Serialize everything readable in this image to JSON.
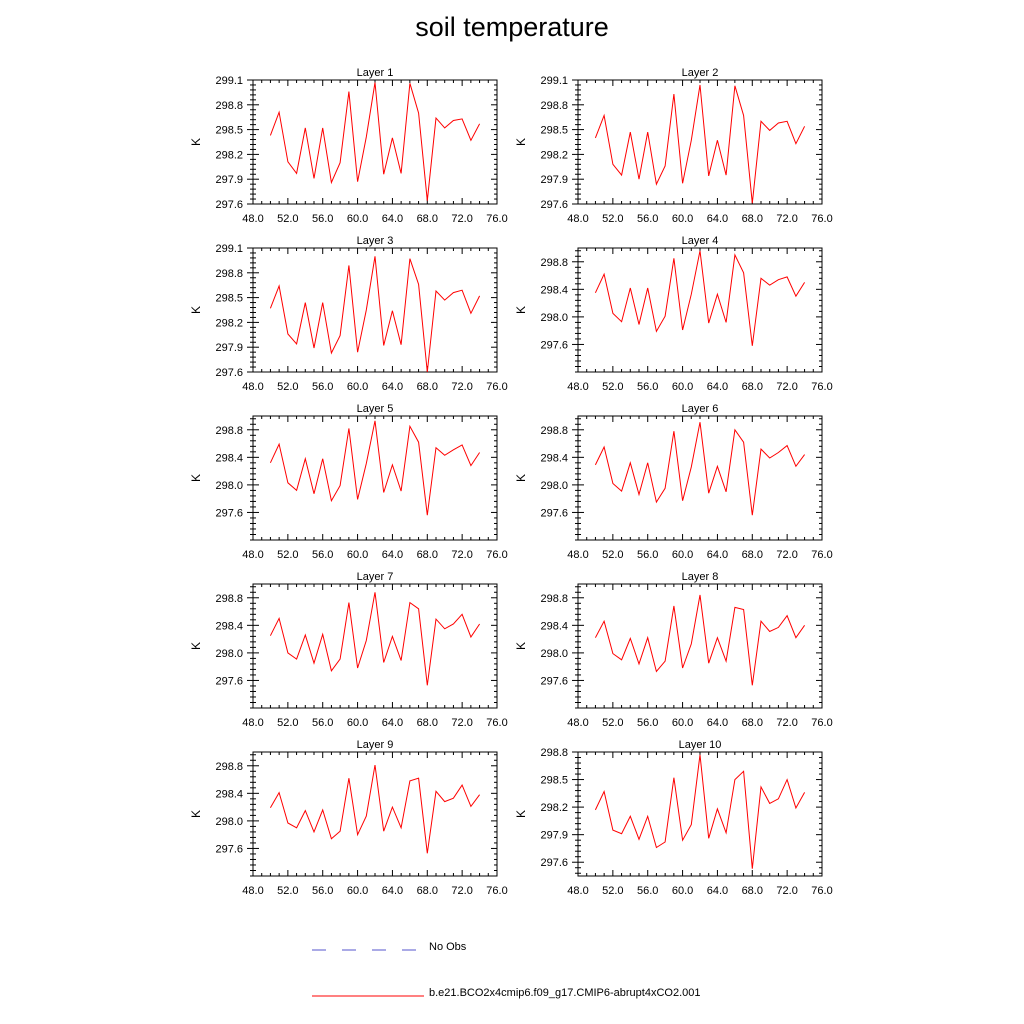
{
  "title": "soil temperature",
  "legend": {
    "items": [
      {
        "label": "No Obs",
        "color": "#5555cc",
        "style": "dashed"
      },
      {
        "label": "b.e21.BCO2x4cmip6.f09_g17.CMIP6-abrupt4xCO2.001",
        "color": "#ff0000",
        "style": "solid"
      }
    ]
  },
  "chart_data": [
    {
      "type": "line",
      "title": "Layer 1",
      "ylabel": "K",
      "xlim": [
        48,
        76
      ],
      "ylim": [
        297.6,
        299.1
      ],
      "xticks": [
        "48.0",
        "52.0",
        "56.0",
        "60.0",
        "64.0",
        "68.0",
        "72.0",
        "76.0"
      ],
      "yticks": [
        "297.6",
        "297.9",
        "298.2",
        "298.5",
        "298.8",
        "299.1"
      ],
      "series": [
        {
          "name": "b.e21.BCO2x4cmip6.f09_g17.CMIP6-abrupt4xCO2.001",
          "x": [
            50,
            51,
            52,
            53,
            54,
            55,
            56,
            57,
            58,
            59,
            60,
            61,
            62,
            63,
            64,
            65,
            66,
            67,
            68,
            69,
            70,
            71,
            72,
            73,
            74
          ],
          "y": [
            298.43,
            298.71,
            298.11,
            297.97,
            298.52,
            297.91,
            298.52,
            297.86,
            298.1,
            298.96,
            297.87,
            298.41,
            299.07,
            297.96,
            298.4,
            297.97,
            299.06,
            298.7,
            297.64,
            298.64,
            298.52,
            298.61,
            298.63,
            298.37,
            298.57
          ]
        }
      ]
    },
    {
      "type": "line",
      "title": "Layer 2",
      "ylabel": "K",
      "xlim": [
        48,
        76
      ],
      "ylim": [
        297.6,
        299.1
      ],
      "xticks": [
        "48.0",
        "52.0",
        "56.0",
        "60.0",
        "64.0",
        "68.0",
        "72.0",
        "76.0"
      ],
      "yticks": [
        "297.6",
        "297.9",
        "298.2",
        "298.5",
        "298.8",
        "299.1"
      ],
      "series": [
        {
          "name": "b.e21.BCO2x4cmip6.f09_g17.CMIP6-abrupt4xCO2.001",
          "x": [
            50,
            51,
            52,
            53,
            54,
            55,
            56,
            57,
            58,
            59,
            60,
            61,
            62,
            63,
            64,
            65,
            66,
            67,
            68,
            69,
            70,
            71,
            72,
            73,
            74
          ],
          "y": [
            298.4,
            298.67,
            298.08,
            297.95,
            298.47,
            297.9,
            298.47,
            297.84,
            298.06,
            298.93,
            297.85,
            298.37,
            299.04,
            297.94,
            298.37,
            297.95,
            299.03,
            298.67,
            297.61,
            298.6,
            298.49,
            298.58,
            298.6,
            298.33,
            298.54
          ]
        }
      ]
    },
    {
      "type": "line",
      "title": "Layer 3",
      "ylabel": "K",
      "xlim": [
        48,
        76
      ],
      "ylim": [
        297.6,
        299.1
      ],
      "xticks": [
        "48.0",
        "52.0",
        "56.0",
        "60.0",
        "64.0",
        "68.0",
        "72.0",
        "76.0"
      ],
      "yticks": [
        "297.6",
        "297.9",
        "298.2",
        "298.5",
        "298.8",
        "299.1"
      ],
      "series": [
        {
          "name": "b.e21.BCO2x4cmip6.f09_g17.CMIP6-abrupt4xCO2.001",
          "x": [
            50,
            51,
            52,
            53,
            54,
            55,
            56,
            57,
            58,
            59,
            60,
            61,
            62,
            63,
            64,
            65,
            66,
            67,
            68,
            69,
            70,
            71,
            72,
            73,
            74
          ],
          "y": [
            298.37,
            298.64,
            298.06,
            297.94,
            298.44,
            297.89,
            298.44,
            297.83,
            298.04,
            298.89,
            297.84,
            298.35,
            299.0,
            297.92,
            298.34,
            297.93,
            298.97,
            298.66,
            297.6,
            298.58,
            298.47,
            298.56,
            298.59,
            298.31,
            298.52
          ]
        }
      ]
    },
    {
      "type": "line",
      "title": "Layer 4",
      "ylabel": "K",
      "xlim": [
        48,
        76
      ],
      "ylim": [
        297.2,
        299.0
      ],
      "xticks": [
        "48.0",
        "52.0",
        "56.0",
        "60.0",
        "64.0",
        "68.0",
        "72.0",
        "76.0"
      ],
      "yticks": [
        "297.6",
        "298.0",
        "298.4",
        "298.8"
      ],
      "series": [
        {
          "name": "b.e21.BCO2x4cmip6.f09_g17.CMIP6-abrupt4xCO2.001",
          "x": [
            50,
            51,
            52,
            53,
            54,
            55,
            56,
            57,
            58,
            59,
            60,
            61,
            62,
            63,
            64,
            65,
            66,
            67,
            68,
            69,
            70,
            71,
            72,
            73,
            74
          ],
          "y": [
            298.35,
            298.62,
            298.05,
            297.93,
            298.42,
            297.89,
            298.42,
            297.79,
            298.01,
            298.85,
            297.81,
            298.33,
            298.96,
            297.91,
            298.33,
            297.92,
            298.9,
            298.64,
            297.58,
            298.56,
            298.46,
            298.54,
            298.58,
            298.3,
            298.5
          ]
        }
      ]
    },
    {
      "type": "line",
      "title": "Layer 5",
      "ylabel": "K",
      "xlim": [
        48,
        76
      ],
      "ylim": [
        297.2,
        299.0
      ],
      "xticks": [
        "48.0",
        "52.0",
        "56.0",
        "60.0",
        "64.0",
        "68.0",
        "72.0",
        "76.0"
      ],
      "yticks": [
        "297.6",
        "298.0",
        "298.4",
        "298.8"
      ],
      "series": [
        {
          "name": "b.e21.BCO2x4cmip6.f09_g17.CMIP6-abrupt4xCO2.001",
          "x": [
            50,
            51,
            52,
            53,
            54,
            55,
            56,
            57,
            58,
            59,
            60,
            61,
            62,
            63,
            64,
            65,
            66,
            67,
            68,
            69,
            70,
            71,
            72,
            73,
            74
          ],
          "y": [
            298.32,
            298.59,
            298.03,
            297.92,
            298.38,
            297.87,
            298.38,
            297.77,
            297.99,
            298.82,
            297.79,
            298.31,
            298.93,
            297.89,
            298.29,
            297.91,
            298.85,
            298.62,
            297.56,
            298.54,
            298.43,
            298.51,
            298.58,
            298.28,
            298.47
          ]
        }
      ]
    },
    {
      "type": "line",
      "title": "Layer 6",
      "ylabel": "K",
      "xlim": [
        48,
        76
      ],
      "ylim": [
        297.2,
        299.0
      ],
      "xticks": [
        "48.0",
        "52.0",
        "56.0",
        "60.0",
        "64.0",
        "68.0",
        "72.0",
        "76.0"
      ],
      "yticks": [
        "297.6",
        "298.0",
        "298.4",
        "298.8"
      ],
      "series": [
        {
          "name": "b.e21.BCO2x4cmip6.f09_g17.CMIP6-abrupt4xCO2.001",
          "x": [
            50,
            51,
            52,
            53,
            54,
            55,
            56,
            57,
            58,
            59,
            60,
            61,
            62,
            63,
            64,
            65,
            66,
            67,
            68,
            69,
            70,
            71,
            72,
            73,
            74
          ],
          "y": [
            298.29,
            298.55,
            298.02,
            297.91,
            298.32,
            297.86,
            298.32,
            297.75,
            297.95,
            298.78,
            297.77,
            298.26,
            298.91,
            297.88,
            298.27,
            297.9,
            298.8,
            298.62,
            297.56,
            298.52,
            298.39,
            298.47,
            298.57,
            298.27,
            298.44
          ]
        }
      ]
    },
    {
      "type": "line",
      "title": "Layer 7",
      "ylabel": "K",
      "xlim": [
        48,
        76
      ],
      "ylim": [
        297.2,
        299.0
      ],
      "xticks": [
        "48.0",
        "52.0",
        "56.0",
        "60.0",
        "64.0",
        "68.0",
        "72.0",
        "76.0"
      ],
      "yticks": [
        "297.6",
        "298.0",
        "298.4",
        "298.8"
      ],
      "series": [
        {
          "name": "b.e21.BCO2x4cmip6.f09_g17.CMIP6-abrupt4xCO2.001",
          "x": [
            50,
            51,
            52,
            53,
            54,
            55,
            56,
            57,
            58,
            59,
            60,
            61,
            62,
            63,
            64,
            65,
            66,
            67,
            68,
            69,
            70,
            71,
            72,
            73,
            74
          ],
          "y": [
            298.25,
            298.5,
            298.0,
            297.91,
            298.26,
            297.85,
            298.27,
            297.74,
            297.91,
            298.73,
            297.78,
            298.18,
            298.88,
            297.86,
            298.24,
            297.89,
            298.73,
            298.64,
            297.53,
            298.49,
            298.35,
            298.42,
            298.56,
            298.23,
            298.42
          ]
        }
      ]
    },
    {
      "type": "line",
      "title": "Layer 8",
      "ylabel": "K",
      "xlim": [
        48,
        76
      ],
      "ylim": [
        297.2,
        299.0
      ],
      "xticks": [
        "48.0",
        "52.0",
        "56.0",
        "60.0",
        "64.0",
        "68.0",
        "72.0",
        "76.0"
      ],
      "yticks": [
        "297.6",
        "298.0",
        "298.4",
        "298.8"
      ],
      "series": [
        {
          "name": "b.e21.BCO2x4cmip6.f09_g17.CMIP6-abrupt4xCO2.001",
          "x": [
            50,
            51,
            52,
            53,
            54,
            55,
            56,
            57,
            58,
            59,
            60,
            61,
            62,
            63,
            64,
            65,
            66,
            67,
            68,
            69,
            70,
            71,
            72,
            73,
            74
          ],
          "y": [
            298.22,
            298.46,
            297.99,
            297.9,
            298.21,
            297.84,
            298.22,
            297.73,
            297.88,
            298.68,
            297.78,
            298.13,
            298.84,
            297.85,
            298.22,
            297.88,
            298.66,
            298.63,
            297.53,
            298.46,
            298.31,
            298.37,
            298.54,
            298.22,
            298.4
          ]
        }
      ]
    },
    {
      "type": "line",
      "title": "Layer 9",
      "ylabel": "K",
      "xlim": [
        48,
        76
      ],
      "ylim": [
        297.2,
        299.0
      ],
      "xticks": [
        "48.0",
        "52.0",
        "56.0",
        "60.0",
        "64.0",
        "68.0",
        "72.0",
        "76.0"
      ],
      "yticks": [
        "297.6",
        "298.0",
        "298.4",
        "298.8"
      ],
      "series": [
        {
          "name": "b.e21.BCO2x4cmip6.f09_g17.CMIP6-abrupt4xCO2.001",
          "x": [
            50,
            51,
            52,
            53,
            54,
            55,
            56,
            57,
            58,
            59,
            60,
            61,
            62,
            63,
            64,
            65,
            66,
            67,
            68,
            69,
            70,
            71,
            72,
            73,
            74
          ],
          "y": [
            298.19,
            298.41,
            297.97,
            297.9,
            298.15,
            297.84,
            298.16,
            297.74,
            297.85,
            298.62,
            297.8,
            298.07,
            298.81,
            297.85,
            298.2,
            297.9,
            298.58,
            298.62,
            297.53,
            298.43,
            298.28,
            298.33,
            298.52,
            298.21,
            298.38
          ]
        }
      ]
    },
    {
      "type": "line",
      "title": "Layer 10",
      "ylabel": "K",
      "xlim": [
        48,
        76
      ],
      "ylim": [
        297.45,
        298.8
      ],
      "xticks": [
        "48.0",
        "52.0",
        "56.0",
        "60.0",
        "64.0",
        "68.0",
        "72.0",
        "76.0"
      ],
      "yticks": [
        "297.6",
        "297.9",
        "298.2",
        "298.5",
        "298.8"
      ],
      "series": [
        {
          "name": "b.e21.BCO2x4cmip6.f09_g17.CMIP6-abrupt4xCO2.001",
          "x": [
            50,
            51,
            52,
            53,
            54,
            55,
            56,
            57,
            58,
            59,
            60,
            61,
            62,
            63,
            64,
            65,
            66,
            67,
            68,
            69,
            70,
            71,
            72,
            73,
            74
          ],
          "y": [
            298.17,
            298.37,
            297.95,
            297.91,
            298.1,
            297.85,
            298.1,
            297.76,
            297.82,
            298.52,
            297.84,
            298.01,
            298.77,
            297.86,
            298.18,
            297.92,
            298.5,
            298.59,
            297.53,
            298.42,
            298.24,
            298.29,
            298.5,
            298.19,
            298.36
          ]
        }
      ]
    }
  ]
}
